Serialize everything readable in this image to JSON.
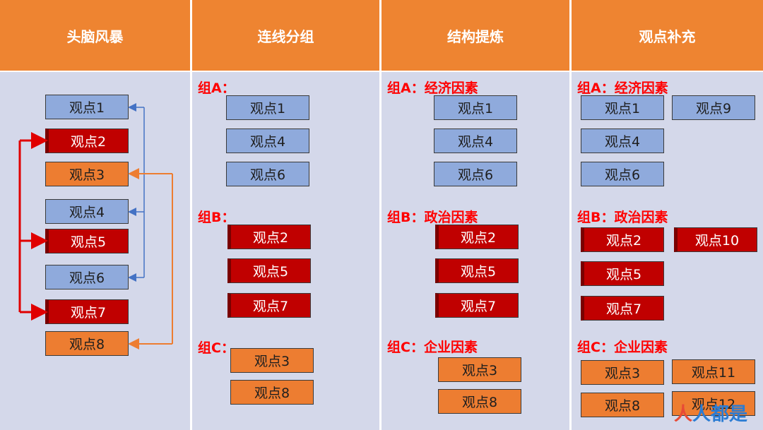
{
  "headers": [
    "头脑风暴",
    "连线分组",
    "结构提炼",
    "观点补充"
  ],
  "colors": {
    "header": "#EE8431",
    "panel": "#D4D8EA",
    "blue": "#8FAADC",
    "red": "#C00000",
    "orange": "#ED7D31",
    "label": "#FF0000"
  },
  "brainstorm": [
    "观点1",
    "观点2",
    "观点3",
    "观点4",
    "观点5",
    "观点6",
    "观点7",
    "观点8"
  ],
  "connect": {
    "groupA_label": "组A：",
    "groupA": [
      "观点1",
      "观点4",
      "观点6"
    ],
    "groupB_label": "组B：",
    "groupB": [
      "观点2",
      "观点5",
      "观点7"
    ],
    "groupC_label": "组C：",
    "groupC": [
      "观点3",
      "观点8"
    ]
  },
  "structure": {
    "groupA_label": "组A：经济因素",
    "groupA": [
      "观点1",
      "观点4",
      "观点6"
    ],
    "groupB_label": "组B：政治因素",
    "groupB": [
      "观点2",
      "观点5",
      "观点7"
    ],
    "groupC_label": "组C：企业因素",
    "groupC": [
      "观点3",
      "观点8"
    ]
  },
  "supplement": {
    "groupA_label": "组A：经济因素",
    "groupA": [
      "观点1",
      "观点4",
      "观点6"
    ],
    "groupA_extra": "观点9",
    "groupB_label": "组B：政治因素",
    "groupB": [
      "观点2",
      "观点5",
      "观点7"
    ],
    "groupB_extra": "观点10",
    "groupC_label": "组C：企业因素",
    "groupC": [
      "观点3",
      "观点8"
    ],
    "groupC_extra1": "观点11",
    "groupC_extra2": "观点12"
  },
  "watermark": {
    "part1": "人",
    "part2": "人都是"
  }
}
